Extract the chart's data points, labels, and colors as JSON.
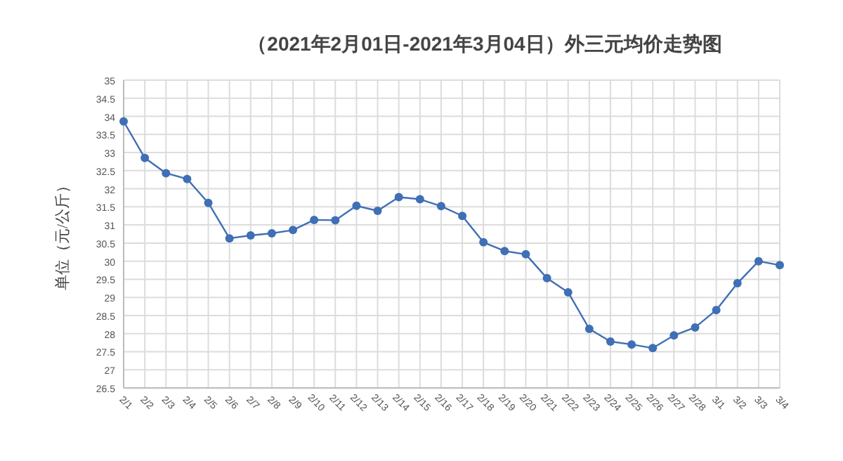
{
  "chart_data": {
    "type": "line",
    "title": "（2021年2月01日-2021年3月04日）外三元均价走势图",
    "ylabel": "单位（元/公斤）",
    "categories": [
      "2/1",
      "2/2",
      "2/3",
      "2/4",
      "2/5",
      "2/6",
      "2/7",
      "2/8",
      "2/9",
      "2/10",
      "2/11",
      "2/12",
      "2/13",
      "2/14",
      "2/15",
      "2/16",
      "2/17",
      "2/18",
      "2/19",
      "2/20",
      "2/21",
      "2/22",
      "2/23",
      "2/24",
      "2/25",
      "2/26",
      "2/27",
      "2/28",
      "3/1",
      "3/2",
      "3/3",
      "3/4"
    ],
    "series": [
      {
        "color": "#3f6fb5",
        "values": [
          33.86,
          32.85,
          32.43,
          32.27,
          31.61,
          30.63,
          30.71,
          30.77,
          30.86,
          31.14,
          31.13,
          31.53,
          31.39,
          31.77,
          31.71,
          31.52,
          31.25,
          30.52,
          30.28,
          30.19,
          29.53,
          29.14,
          28.13,
          27.78,
          27.7,
          27.6,
          27.95,
          28.17,
          28.65,
          29.39,
          30.0,
          29.89
        ]
      }
    ],
    "ylim": [
      26.5,
      35
    ],
    "yticks": [
      26.5,
      27,
      27.5,
      28,
      28.5,
      29,
      29.5,
      30,
      30.5,
      31,
      31.5,
      32,
      32.5,
      33,
      33.5,
      34,
      34.5,
      35
    ],
    "grid": true,
    "marker": "circle",
    "line_style": "solid"
  }
}
